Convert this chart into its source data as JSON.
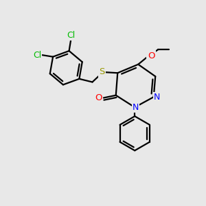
{
  "background_color": "#e8e8e8",
  "bond_color": "#000000",
  "bond_width": 1.6,
  "Cl_color": "#00bb00",
  "S_color": "#999900",
  "O_color": "#ff0000",
  "N_color": "#0000ff",
  "fig_width": 3.0,
  "fig_height": 3.0,
  "dpi": 100,
  "xlim": [
    -1,
    11
  ],
  "ylim": [
    -1,
    11
  ]
}
